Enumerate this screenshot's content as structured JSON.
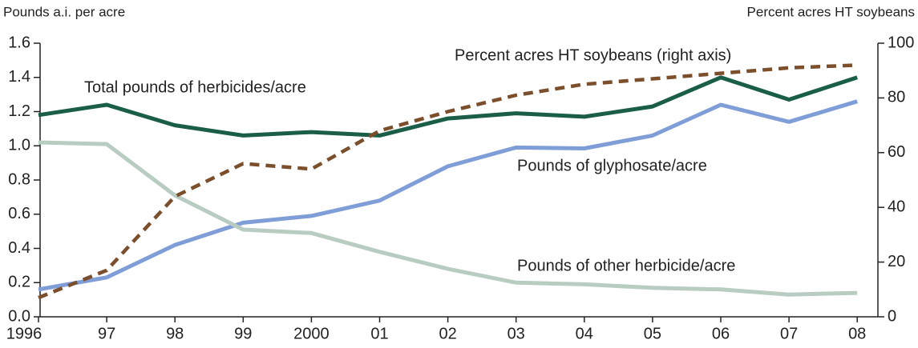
{
  "chart_data": {
    "type": "line",
    "y_label": "Pounds a.i. per acre",
    "y2_label": "Percent acres HT soybeans",
    "categories": [
      "1996",
      "97",
      "98",
      "99",
      "2000",
      "01",
      "02",
      "03",
      "04",
      "05",
      "06",
      "07",
      "08"
    ],
    "series": [
      {
        "name": "Total pounds of herbicides/acre",
        "color": "#1b5e47",
        "dashed": false,
        "values": [
          1.18,
          1.24,
          1.12,
          1.06,
          1.08,
          1.06,
          1.16,
          1.19,
          1.17,
          1.23,
          1.4,
          1.27,
          1.4
        ]
      },
      {
        "name": "Pounds of glyphosate/acre",
        "color": "#7f9dd6",
        "dashed": false,
        "values": [
          0.16,
          0.23,
          0.42,
          0.55,
          0.59,
          0.68,
          0.88,
          0.99,
          0.985,
          1.06,
          1.24,
          1.14,
          1.26
        ]
      },
      {
        "name": "Pounds of other herbicide/acre",
        "color": "#b8ccc2",
        "dashed": false,
        "values": [
          1.02,
          1.01,
          0.71,
          0.51,
          0.49,
          0.38,
          0.28,
          0.2,
          0.19,
          0.17,
          0.16,
          0.13,
          0.14
        ]
      },
      {
        "name": "Percent acres HT soybeans (right axis)",
        "color": "#7b4f2c",
        "dashed": true,
        "axis": "y2",
        "values": [
          7,
          17,
          44,
          56,
          54,
          68,
          75,
          81,
          85,
          87,
          89,
          91,
          92
        ]
      }
    ],
    "ylim": [
      0,
      1.6
    ],
    "yticks": [
      {
        "value": 0,
        "label": "0.0"
      },
      0.2,
      0.4,
      0.6,
      0.8,
      {
        "value": 1,
        "label": "1.0"
      },
      1.2,
      1.4,
      1.6
    ],
    "y2lim": [
      0,
      100
    ],
    "y2ticks": [
      0,
      20,
      40,
      60,
      80,
      100
    ],
    "grid": false
  }
}
